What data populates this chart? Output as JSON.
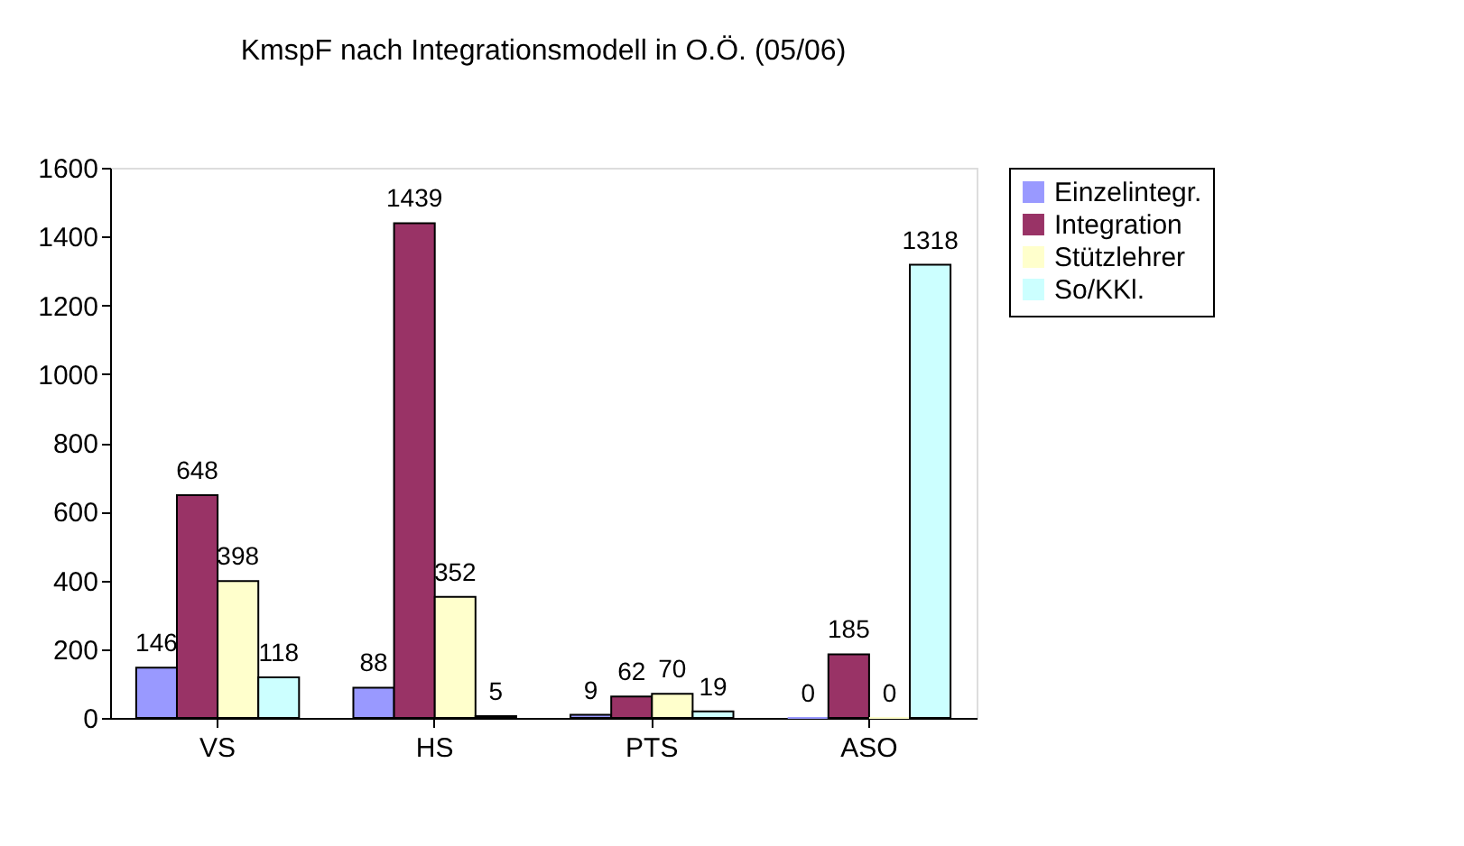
{
  "chart_data": {
    "type": "bar",
    "title": "KmspF nach Integrationsmodell in O.Ö. (05/06)",
    "categories": [
      "VS",
      "HS",
      "PTS",
      "ASO"
    ],
    "series": [
      {
        "name": "Einzelintegr.",
        "color": "#9999ff",
        "values": [
          146,
          88,
          9,
          0
        ]
      },
      {
        "name": "Integration",
        "color": "#993366",
        "values": [
          648,
          1439,
          62,
          185
        ]
      },
      {
        "name": "Stützlehrer",
        "color": "#ffffcc",
        "values": [
          398,
          352,
          70,
          0
        ]
      },
      {
        "name": "So/KKl.",
        "color": "#ccffff",
        "values": [
          118,
          5,
          19,
          1318
        ]
      }
    ],
    "ylim": [
      0,
      1600
    ],
    "yticks": [
      0,
      200,
      400,
      600,
      800,
      1000,
      1200,
      1400,
      1600
    ],
    "grid": false,
    "legend": "right",
    "data_labels": true
  }
}
